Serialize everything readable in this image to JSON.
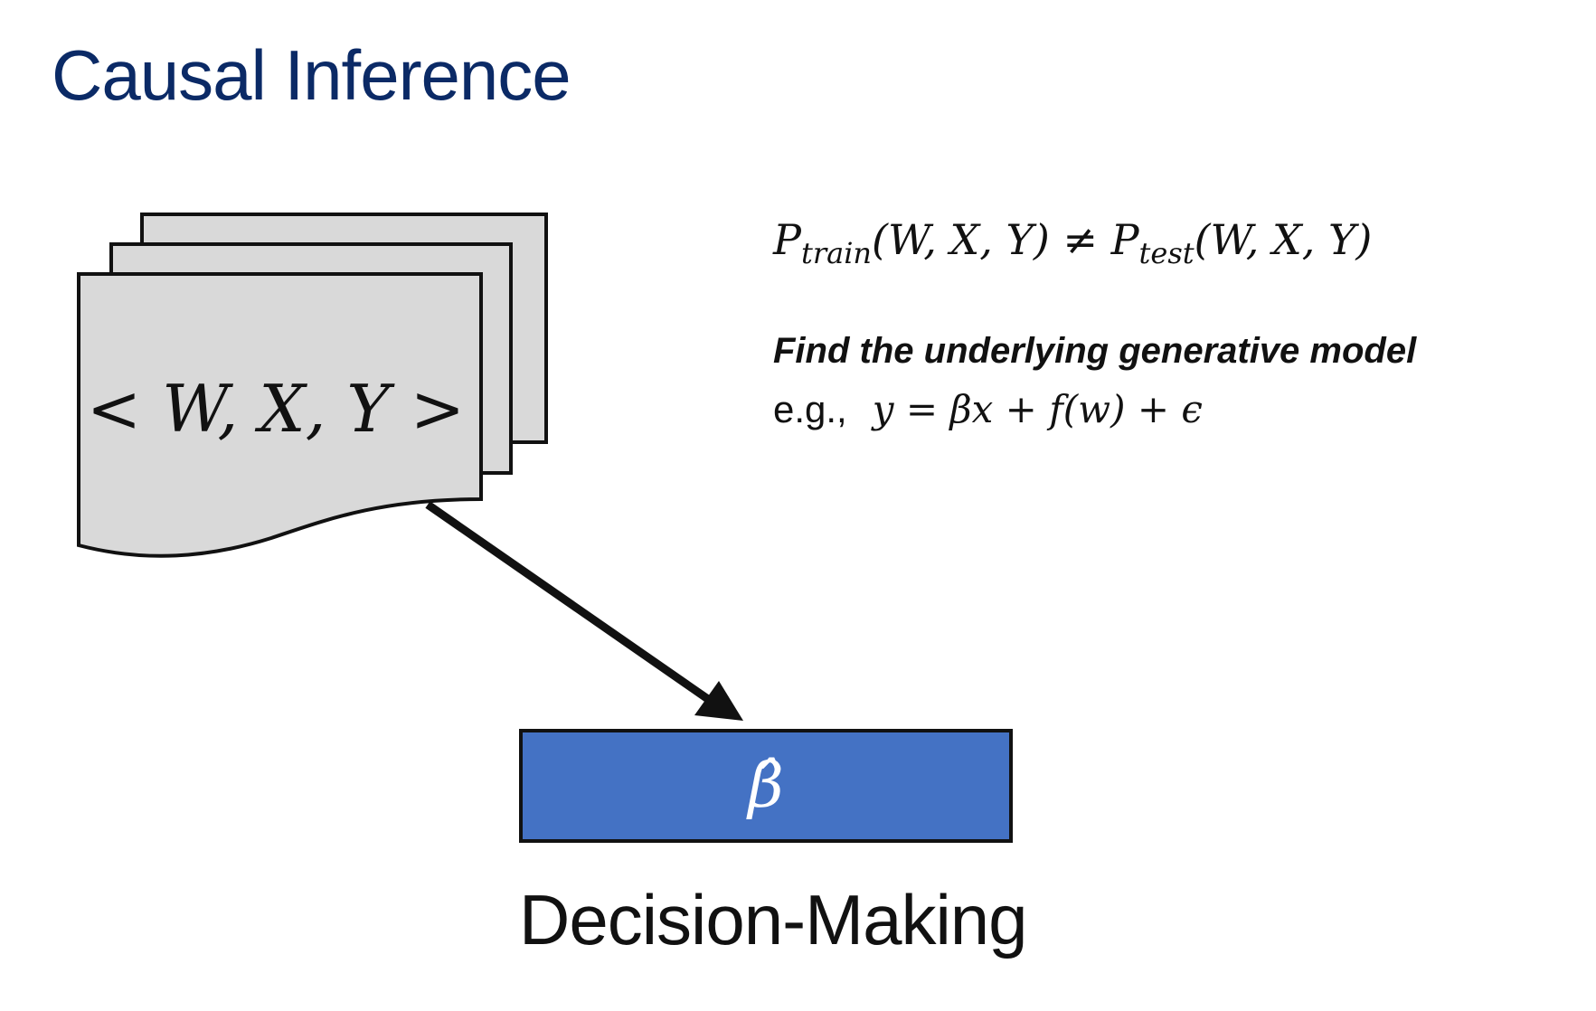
{
  "slide": {
    "title": "Causal Inference"
  },
  "data_stack": {
    "label": "< W, X, Y >"
  },
  "distribution_shift": {
    "equation": "P_train(W, X, Y) ≠ P_test(W, X, Y)",
    "p1": "P",
    "sub1": "train",
    "args1": "(W, X, Y)",
    "neq": " ≠ ",
    "p2": "P",
    "sub2": "test",
    "args2": "(W, X, Y)"
  },
  "model_note": {
    "heading": "Find the underlying generative model",
    "example_prefix": "e.g.,",
    "example_equation": "y = βx + f(w) +  ϵ"
  },
  "estimate": {
    "symbol": "β̂"
  },
  "decision": {
    "label": "Decision-Making"
  },
  "colors": {
    "title": "#0b2a66",
    "document_fill": "#d9d9d9",
    "estimate_box": "#4472c4",
    "stroke": "#111111"
  }
}
